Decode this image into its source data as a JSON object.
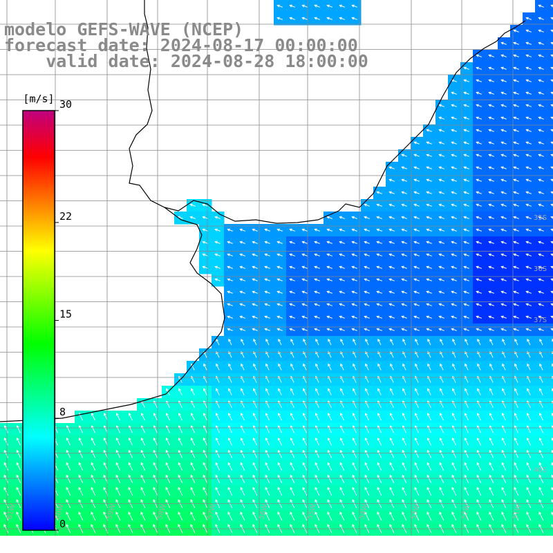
{
  "header": {
    "line1": "modelo GEFS-WAVE (NCEP)",
    "line2": "forecast date: 2024-08-17 00:00:00",
    "line3": "    valid date: 2024-08-28 18:00:00"
  },
  "colorbar": {
    "unit": "[m/s]",
    "ticks": [
      {
        "value": 30,
        "label": "30"
      },
      {
        "value": 22,
        "label": "22"
      },
      {
        "value": 15,
        "label": "15"
      },
      {
        "value": 8,
        "label": "8"
      },
      {
        "value": 0,
        "label": "0"
      }
    ],
    "stops": [
      "#0000ff",
      "#0080ff",
      "#00ffff",
      "#00ff80",
      "#00ff00",
      "#80ff00",
      "#ffff00",
      "#ff8000",
      "#ff0000",
      "#c00080"
    ]
  },
  "map": {
    "lat_labels": [
      "35S",
      "36S",
      "37S",
      "40S"
    ],
    "lon_labels": [
      "61W",
      "60W",
      "59W",
      "58W",
      "57W",
      "56W",
      "55W",
      "54W",
      "53W",
      "52W",
      "51W"
    ]
  },
  "colors": {
    "land": "#ffffff",
    "coast": "#000000",
    "grid": "#888888",
    "title": "#8a8a8a",
    "arrow": "#ffffff"
  }
}
